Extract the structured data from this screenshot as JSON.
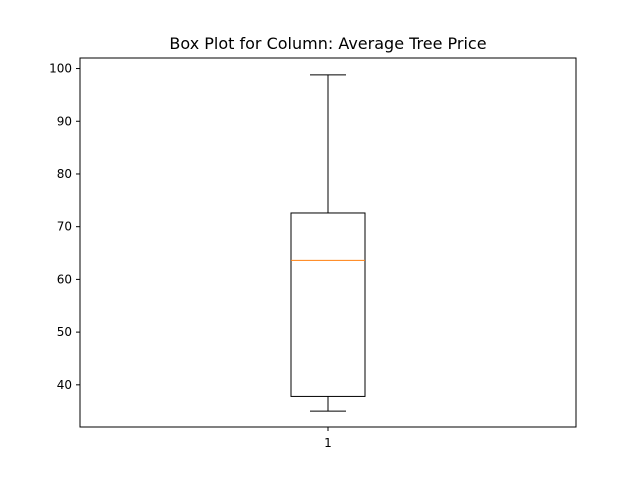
{
  "chart_data": {
    "type": "box",
    "title": "Box Plot for Column: Average Tree Price",
    "xlabel": "",
    "ylabel": "",
    "categories": [
      "1"
    ],
    "ylim": [
      32,
      102
    ],
    "yticks": [
      40,
      50,
      60,
      70,
      80,
      90,
      100
    ],
    "grid": false,
    "boxes": [
      {
        "label": "1",
        "whisker_low": 35.0,
        "q1": 37.8,
        "median": 63.6,
        "q3": 72.6,
        "whisker_high": 98.8
      }
    ],
    "colors": {
      "box": "#000000",
      "median": "#ff7f0e",
      "axes": "#000000",
      "background": "#ffffff"
    }
  }
}
